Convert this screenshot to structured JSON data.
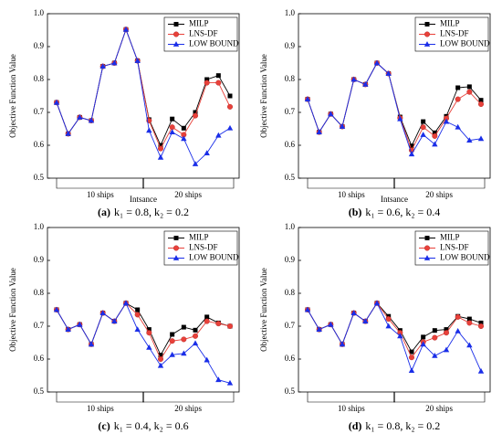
{
  "chart_data": [
    {
      "type": "line",
      "caption_label": "(a)",
      "caption": "k₁ = 0.8, k₂ = 0.2",
      "y_label": "Objective Function Value",
      "x_label": "Intsance",
      "annotations": [
        "10 ships",
        "20 ships"
      ],
      "categories": [
        null,
        null,
        null,
        null,
        null,
        null,
        null,
        null,
        null,
        null,
        null,
        null,
        null,
        null,
        null,
        null
      ],
      "ylim": [
        0.5,
        1.0
      ],
      "yticks": [
        0.5,
        0.6,
        0.7,
        0.8,
        0.9,
        {
          "value": 1.0,
          "label": "1.0"
        }
      ],
      "legend": "upper right",
      "series": [
        {
          "name": "MILP",
          "color": "#000000",
          "marker": "square",
          "values": [
            0.73,
            0.635,
            0.685,
            0.675,
            0.84,
            0.85,
            0.952,
            0.857,
            0.678,
            0.6,
            0.68,
            0.652,
            0.7,
            0.8,
            0.812,
            0.75
          ]
        },
        {
          "name": "LNS-DF",
          "color": "#e8413a",
          "marker": "circle",
          "values": [
            0.73,
            0.635,
            0.685,
            0.675,
            0.84,
            0.85,
            0.952,
            0.857,
            0.675,
            0.59,
            0.655,
            0.632,
            0.69,
            0.79,
            0.79,
            0.717
          ]
        },
        {
          "name": "LOW BOUND",
          "color": "#1a2ee8",
          "marker": "triangle",
          "values": [
            0.73,
            0.635,
            0.685,
            0.675,
            0.84,
            0.85,
            0.952,
            0.857,
            0.645,
            0.563,
            0.64,
            0.62,
            0.543,
            0.576,
            0.63,
            0.652
          ]
        }
      ]
    },
    {
      "type": "line",
      "caption_label": "(b)",
      "caption": "k₁ = 0.6, k₂ = 0.4",
      "y_label": "Objective Function Value",
      "x_label": "Intsance",
      "annotations": [
        "10 ships",
        "20 ships"
      ],
      "categories": [
        null,
        null,
        null,
        null,
        null,
        null,
        null,
        null,
        null,
        null,
        null,
        null,
        null,
        null,
        null,
        null
      ],
      "ylim": [
        0.5,
        1.0
      ],
      "yticks": [
        0.5,
        0.6,
        0.7,
        0.8,
        0.9,
        {
          "value": 1.0,
          "label": "1.0"
        }
      ],
      "legend": "upper right",
      "series": [
        {
          "name": "MILP",
          "color": "#000000",
          "marker": "square",
          "values": [
            0.74,
            0.64,
            0.695,
            0.657,
            0.8,
            0.785,
            0.85,
            0.818,
            0.686,
            0.598,
            0.672,
            0.638,
            0.688,
            0.775,
            0.778,
            0.737
          ]
        },
        {
          "name": "LNS-DF",
          "color": "#e8413a",
          "marker": "circle",
          "values": [
            0.74,
            0.64,
            0.695,
            0.657,
            0.8,
            0.785,
            0.85,
            0.818,
            0.683,
            0.585,
            0.655,
            0.628,
            0.682,
            0.74,
            0.762,
            0.725
          ]
        },
        {
          "name": "LOW BOUND",
          "color": "#1a2ee8",
          "marker": "triangle",
          "values": [
            0.74,
            0.64,
            0.695,
            0.657,
            0.8,
            0.785,
            0.85,
            0.818,
            0.68,
            0.573,
            0.632,
            0.603,
            0.672,
            0.655,
            0.615,
            0.62
          ]
        }
      ]
    },
    {
      "type": "line",
      "caption_label": "(c)",
      "caption": "k₁ = 0.4, k₂ = 0.6",
      "y_label": "Objective Function Value",
      "annotations": [
        "10 ships",
        "20 ships"
      ],
      "categories": [
        null,
        null,
        null,
        null,
        null,
        null,
        null,
        null,
        null,
        null,
        null,
        null,
        null,
        null,
        null,
        null
      ],
      "ylim": [
        0.5,
        1.0
      ],
      "yticks": [
        0.5,
        0.6,
        0.7,
        0.8,
        0.9,
        {
          "value": 1.0,
          "label": "1.0"
        }
      ],
      "legend": "upper right",
      "series": [
        {
          "name": "MILP",
          "color": "#000000",
          "marker": "square",
          "values": [
            0.75,
            0.69,
            0.705,
            0.645,
            0.74,
            0.715,
            0.77,
            0.75,
            0.69,
            0.612,
            0.675,
            0.697,
            0.688,
            0.728,
            0.71,
            0.7
          ]
        },
        {
          "name": "LNS-DF",
          "color": "#e8413a",
          "marker": "circle",
          "values": [
            0.75,
            0.69,
            0.705,
            0.645,
            0.74,
            0.715,
            0.77,
            0.735,
            0.68,
            0.6,
            0.655,
            0.66,
            0.67,
            0.715,
            0.708,
            0.7
          ]
        },
        {
          "name": "LOW BOUND",
          "color": "#1a2ee8",
          "marker": "triangle",
          "values": [
            0.75,
            0.69,
            0.705,
            0.645,
            0.74,
            0.715,
            0.77,
            0.69,
            0.635,
            0.58,
            0.613,
            0.617,
            0.648,
            0.597,
            0.537,
            0.527
          ]
        }
      ]
    },
    {
      "type": "line",
      "caption_label": "(d)",
      "caption": "k₁ = 0.8, k₂ = 0.2",
      "y_label": "Objective Function Value",
      "annotations": [
        "10 ships",
        "20 ships"
      ],
      "categories": [
        null,
        null,
        null,
        null,
        null,
        null,
        null,
        null,
        null,
        null,
        null,
        null,
        null,
        null,
        null,
        null
      ],
      "ylim": [
        0.5,
        1.0
      ],
      "yticks": [
        0.5,
        0.6,
        0.7,
        0.8,
        0.9,
        {
          "value": 1.0,
          "label": "1.0"
        }
      ],
      "legend": "upper right",
      "series": [
        {
          "name": "MILP",
          "color": "#000000",
          "marker": "square",
          "values": [
            0.75,
            0.69,
            0.705,
            0.645,
            0.74,
            0.715,
            0.77,
            0.73,
            0.687,
            0.622,
            0.667,
            0.687,
            0.69,
            0.73,
            0.722,
            0.71
          ]
        },
        {
          "name": "LNS-DF",
          "color": "#e8413a",
          "marker": "circle",
          "values": [
            0.75,
            0.69,
            0.705,
            0.645,
            0.74,
            0.715,
            0.77,
            0.722,
            0.68,
            0.605,
            0.652,
            0.665,
            0.68,
            0.728,
            0.71,
            0.7
          ]
        },
        {
          "name": "LOW BOUND",
          "color": "#1a2ee8",
          "marker": "triangle",
          "values": [
            0.75,
            0.69,
            0.705,
            0.645,
            0.74,
            0.715,
            0.77,
            0.7,
            0.67,
            0.565,
            0.645,
            0.61,
            0.628,
            0.685,
            0.642,
            0.563
          ]
        }
      ]
    }
  ]
}
